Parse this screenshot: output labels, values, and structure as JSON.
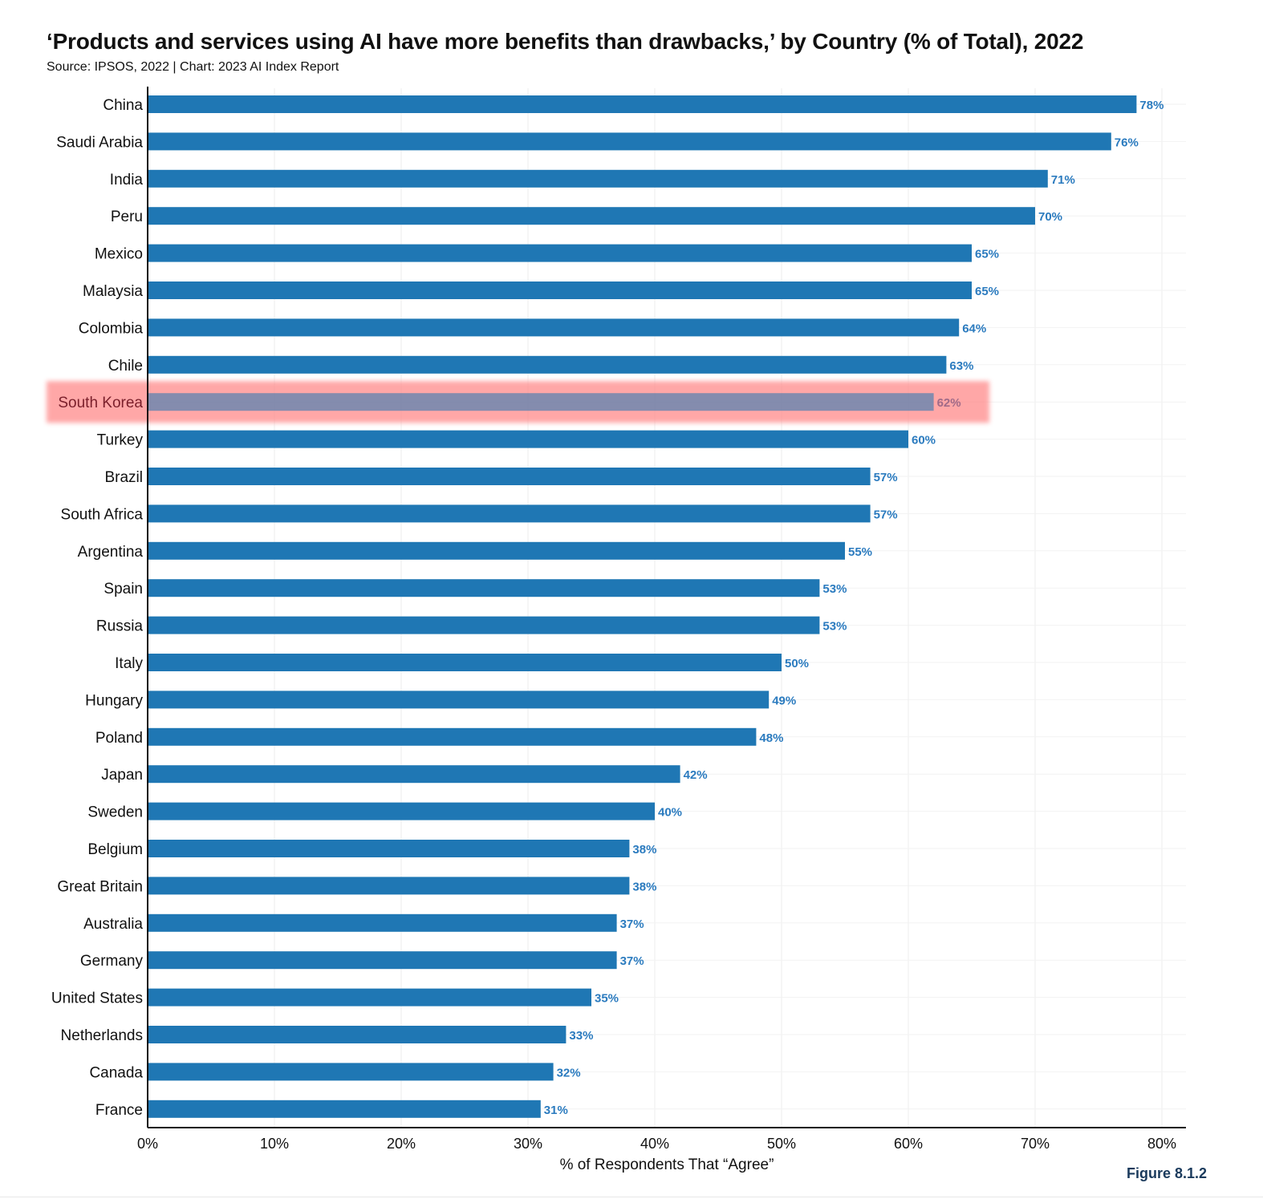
{
  "header": {
    "title": "‘Products and services using AI have more benefits than drawbacks,’ by Country (% of Total), 2022",
    "subtitle": "Source: IPSOS, 2022 | Chart: 2023 AI Index Report"
  },
  "figure_label": "Figure 8.1.2",
  "colors": {
    "bar": "#1f77b4",
    "value_label": "#2b7bbf",
    "highlight": "#ff8a8a"
  },
  "chart_data": {
    "type": "bar",
    "orientation": "horizontal",
    "title": "‘Products and services using AI have more benefits than drawbacks,’ by Country (% of Total), 2022",
    "xlabel": "% of Respondents That “Agree”",
    "ylabel": "",
    "xlim": [
      0,
      82
    ],
    "x_ticks": [
      0,
      10,
      20,
      30,
      40,
      50,
      60,
      70,
      80
    ],
    "x_tick_labels": [
      "0%",
      "10%",
      "20%",
      "30%",
      "40%",
      "50%",
      "60%",
      "70%",
      "80%"
    ],
    "grid": true,
    "highlighted_category": "South Korea",
    "categories": [
      "China",
      "Saudi Arabia",
      "India",
      "Peru",
      "Mexico",
      "Malaysia",
      "Colombia",
      "Chile",
      "South Korea",
      "Turkey",
      "Brazil",
      "South Africa",
      "Argentina",
      "Spain",
      "Russia",
      "Italy",
      "Hungary",
      "Poland",
      "Japan",
      "Sweden",
      "Belgium",
      "Great Britain",
      "Australia",
      "Germany",
      "United States",
      "Netherlands",
      "Canada",
      "France"
    ],
    "values": [
      78,
      76,
      71,
      70,
      65,
      65,
      64,
      63,
      62,
      60,
      57,
      57,
      55,
      53,
      53,
      50,
      49,
      48,
      42,
      40,
      38,
      38,
      37,
      37,
      35,
      33,
      32,
      31
    ],
    "value_labels": [
      "78%",
      "76%",
      "71%",
      "70%",
      "65%",
      "65%",
      "64%",
      "63%",
      "62%",
      "60%",
      "57%",
      "57%",
      "55%",
      "53%",
      "53%",
      "50%",
      "49%",
      "48%",
      "42%",
      "40%",
      "38%",
      "38%",
      "37%",
      "37%",
      "35%",
      "33%",
      "32%",
      "31%"
    ]
  }
}
